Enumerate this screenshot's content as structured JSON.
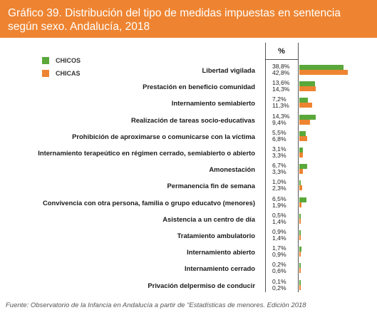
{
  "title_line1": "Gráfico 39. Distribución del tipo de medidas impuestas en sentencia",
  "title_line2": "según sexo. Andalucía, 2018",
  "footer": "Fuente: Observatorio de la Infancia en Andalucía a partir de “Estadísticas de menores. Edición 2018",
  "colors": {
    "header": "#ee8431",
    "chicos": "#5aa83a",
    "chicas": "#ee8431"
  },
  "chart_data": {
    "type": "bar",
    "orientation": "horizontal",
    "column_header": "%",
    "categories": [
      "Libertad vigilada",
      "Prestación en beneficio comunidad",
      "Internamiento semiabierto",
      "Realización de tareas socio-educativas",
      "Prohibición de aproximarse o comunicarse con la víctima",
      "Internamiento terapeútico en régimen cerrado, semiabierto o abierto",
      "Amonestación",
      "Permanencia fin de semana",
      "Convivencia con otra persona, familia o grupo educatvo (menores)",
      "Asistencia a un centro de día",
      "Tratamiento ambulatorio",
      "Internamiento abierto",
      "Internamiento cerrado",
      "Privación delpermiso de conducir"
    ],
    "series": [
      {
        "name": "CHICOS",
        "values": [
          38.8,
          13.6,
          7.2,
          14.3,
          5.5,
          3.1,
          6.7,
          1.0,
          6.5,
          0.5,
          0.9,
          1.7,
          0.2,
          0.1
        ],
        "labels": [
          "38,8%",
          "13,6%",
          "7,2%",
          "14,3%",
          "5,5%",
          "3,1%",
          "6,7%",
          "1,0%",
          "6,5%",
          "0,5%",
          "0,9%",
          "1,7%",
          "0,2%",
          "0,1%"
        ]
      },
      {
        "name": "CHICAS",
        "values": [
          42.8,
          14.3,
          11.3,
          9.4,
          6.8,
          3.3,
          3.3,
          2.3,
          1.9,
          1.4,
          1.4,
          0.9,
          0.6,
          0.2
        ],
        "labels": [
          "42,8%",
          "14,3%",
          "11,3%",
          "9,4%",
          "6,8%",
          "3,3%",
          "3,3%",
          "2,3%",
          "1,9%",
          "1,4%",
          "1,4%",
          "0,9%",
          "0,6%",
          "0,2%"
        ]
      }
    ],
    "legend_position": "top-left",
    "grid": false
  }
}
